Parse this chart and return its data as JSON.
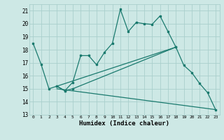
{
  "xlabel": "Humidex (Indice chaleur)",
  "bg_color": "#cde8e5",
  "grid_color": "#aacfcc",
  "line_color": "#1a7a6e",
  "xlim": [
    -0.5,
    23.5
  ],
  "ylim": [
    13,
    21.5
  ],
  "yticks": [
    13,
    14,
    15,
    16,
    17,
    18,
    19,
    20,
    21
  ],
  "xticks": [
    0,
    1,
    2,
    3,
    4,
    5,
    6,
    7,
    8,
    9,
    10,
    11,
    12,
    13,
    14,
    15,
    16,
    17,
    18,
    19,
    20,
    21,
    22,
    23
  ],
  "line1_x": [
    0,
    1,
    2,
    3,
    4,
    5,
    6,
    7,
    8,
    9,
    10,
    11,
    12,
    13,
    14,
    15,
    16,
    17,
    18
  ],
  "line1_y": [
    18.5,
    16.9,
    15.0,
    15.2,
    14.85,
    15.5,
    17.55,
    17.55,
    16.85,
    17.8,
    18.5,
    21.1,
    19.4,
    20.1,
    20.0,
    19.95,
    20.6,
    19.4,
    18.2
  ],
  "line2_x": [
    3,
    4,
    5,
    18,
    19,
    20,
    21,
    22,
    23
  ],
  "line2_y": [
    15.2,
    14.85,
    15.0,
    18.2,
    16.8,
    16.25,
    15.4,
    14.7,
    13.4
  ],
  "line3_x": [
    3,
    18
  ],
  "line3_y": [
    15.2,
    18.2
  ],
  "line4_x": [
    3,
    23
  ],
  "line4_y": [
    15.0,
    13.4
  ]
}
